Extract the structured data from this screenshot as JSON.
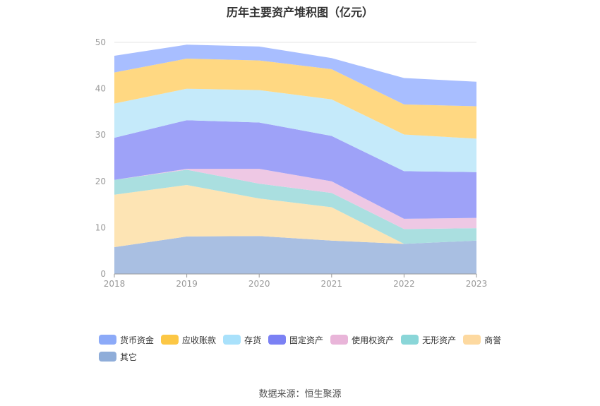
{
  "title": "历年主要资产堆积图（亿元）",
  "source": "数据来源：恒生聚源",
  "chart_data": {
    "type": "area",
    "stacked": true,
    "title": "历年主要资产堆积图（亿元）",
    "x": [
      "2018",
      "2019",
      "2020",
      "2021",
      "2022",
      "2023"
    ],
    "ylim": [
      0,
      50
    ],
    "yticks": [
      0,
      10,
      20,
      30,
      40,
      50
    ],
    "grid": true,
    "legend_position": "bottom",
    "series": [
      {
        "name": "其它",
        "color": "#a9bfe2",
        "values": [
          5.8,
          8.1,
          8.2,
          7.2,
          6.5,
          7.2
        ]
      },
      {
        "name": "商誉",
        "color": "#fde4b4",
        "values": [
          11.3,
          11.1,
          8.1,
          7.2,
          0.0,
          0.0
        ]
      },
      {
        "name": "无形资产",
        "color": "#aadfe0",
        "values": [
          3.2,
          3.3,
          3.2,
          3.1,
          3.2,
          2.7
        ]
      },
      {
        "name": "使用权资产",
        "color": "#eec8e4",
        "values": [
          0.0,
          0.2,
          3.2,
          2.5,
          2.2,
          2.2
        ]
      },
      {
        "name": "固定资产",
        "color": "#9ea2f8",
        "values": [
          9.1,
          10.5,
          10.0,
          9.8,
          10.3,
          9.9
        ]
      },
      {
        "name": "存货",
        "color": "#c5eafa",
        "values": [
          7.4,
          6.8,
          7.0,
          7.9,
          7.9,
          7.2
        ]
      },
      {
        "name": "应收账款",
        "color": "#ffd882",
        "values": [
          6.7,
          6.5,
          6.4,
          6.5,
          6.5,
          7.0
        ]
      },
      {
        "name": "货币资金",
        "color": "#a8beff",
        "values": [
          3.6,
          3.0,
          3.0,
          2.4,
          5.7,
          5.3
        ]
      }
    ]
  },
  "legend": [
    {
      "name": "货币资金",
      "color": "#8caaf8"
    },
    {
      "name": "应收账款",
      "color": "#fcc745"
    },
    {
      "name": "存货",
      "color": "#a9e1fb"
    },
    {
      "name": "固定资产",
      "color": "#7b81f4"
    },
    {
      "name": "使用权资产",
      "color": "#e9b5d9"
    },
    {
      "name": "无形资产",
      "color": "#8ad6d8"
    },
    {
      "name": "商誉",
      "color": "#fdd9a0"
    },
    {
      "name": "其它",
      "color": "#8fadd9"
    }
  ]
}
